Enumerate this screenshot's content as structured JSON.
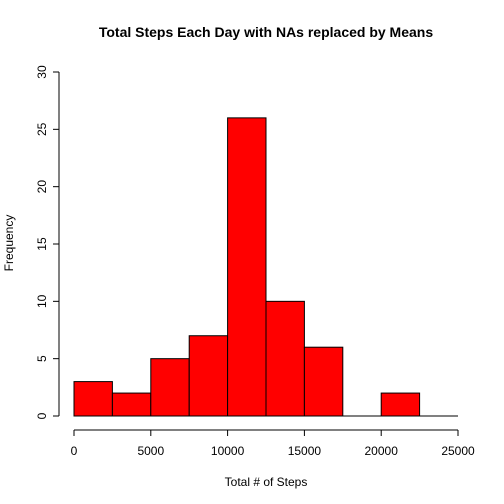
{
  "chart_data": {
    "type": "bar",
    "title": "Total Steps Each Day with NAs replaced by Means",
    "xlabel": "Total # of Steps",
    "ylabel": "Frequency",
    "bar_color": "#ff0000",
    "edge_color": "#000000",
    "bins": [
      {
        "start": 0,
        "end": 2500,
        "count": 3
      },
      {
        "start": 2500,
        "end": 5000,
        "count": 2
      },
      {
        "start": 5000,
        "end": 7500,
        "count": 5
      },
      {
        "start": 7500,
        "end": 10000,
        "count": 7
      },
      {
        "start": 10000,
        "end": 12500,
        "count": 26
      },
      {
        "start": 12500,
        "end": 15000,
        "count": 10
      },
      {
        "start": 15000,
        "end": 17500,
        "count": 6
      },
      {
        "start": 17500,
        "end": 20000,
        "count": 0
      },
      {
        "start": 20000,
        "end": 22500,
        "count": 2
      },
      {
        "start": 22500,
        "end": 25000,
        "count": 0
      }
    ],
    "xlim": [
      0,
      25000
    ],
    "ylim": [
      0,
      30
    ],
    "x_ticks": [
      0,
      5000,
      10000,
      15000,
      20000,
      25000
    ],
    "y_ticks": [
      0,
      5,
      10,
      15,
      20,
      25,
      30
    ],
    "grid": false,
    "legend": "none"
  }
}
